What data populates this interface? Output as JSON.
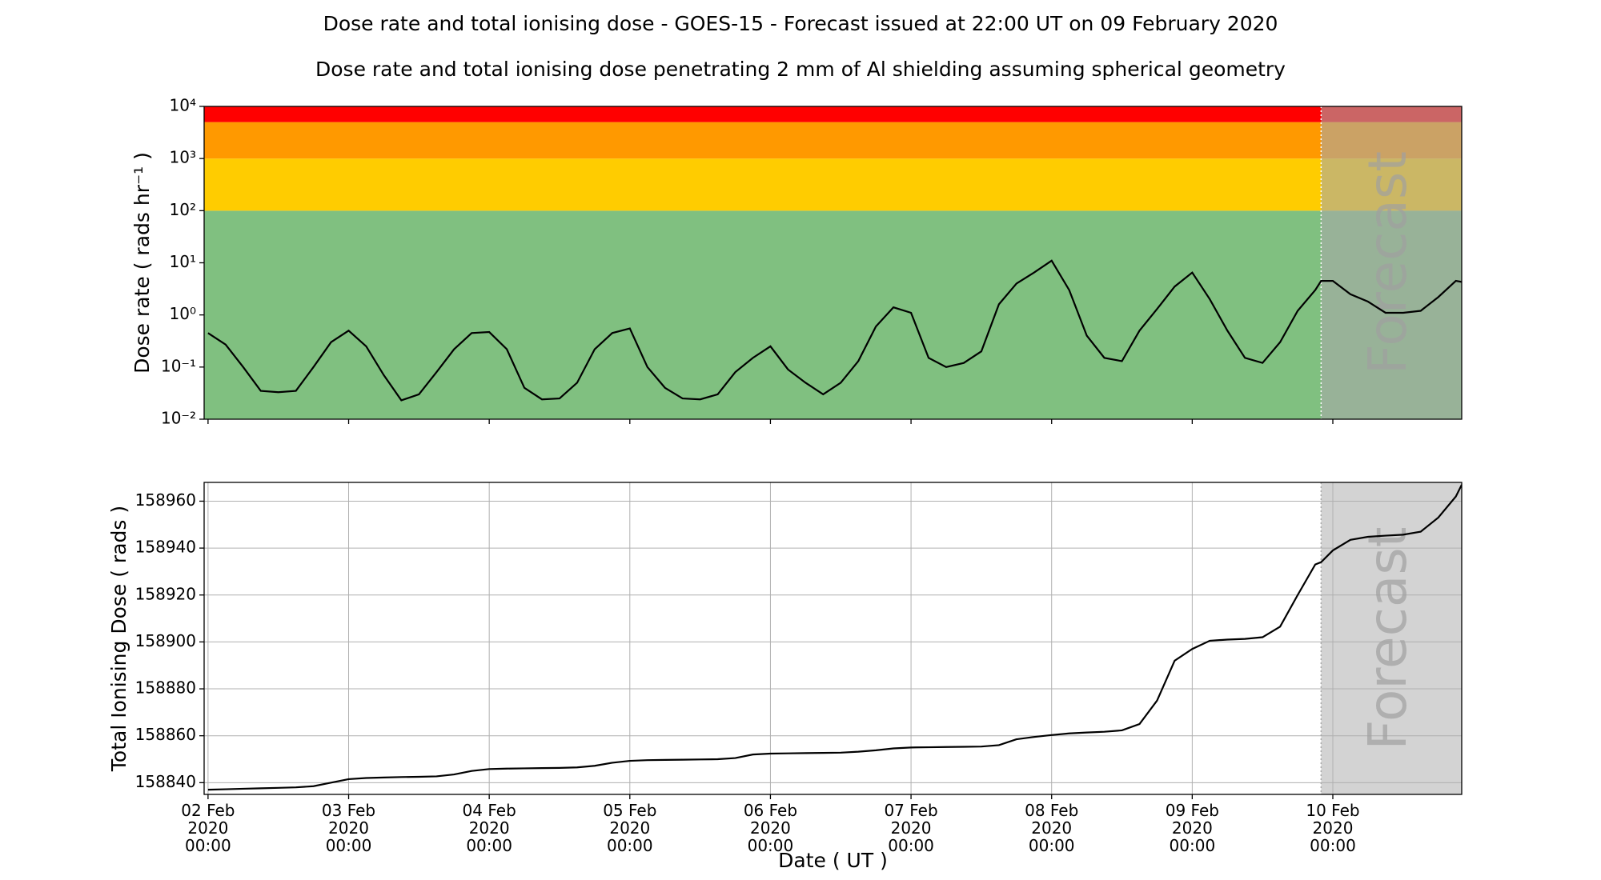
{
  "chart_data": [
    {
      "type": "line",
      "title": "Dose rate and total ionising dose - GOES-15 - Forecast issued at 22:00 UT on 09 February 2020",
      "subtitle": "Dose rate and total ionising dose penetrating 2 mm of Al shielding assuming spherical geometry",
      "y_label": "Dose rate ( rads hr⁻¹ )",
      "yscale": "log",
      "ylim": [
        0.01,
        10000
      ],
      "yticks": [
        {
          "value": 0.01,
          "label": "10⁻²"
        },
        {
          "value": 0.1,
          "label": "10⁻¹"
        },
        {
          "value": 1,
          "label": "10⁰"
        },
        {
          "value": 10,
          "label": "10¹"
        },
        {
          "value": 100,
          "label": "10²"
        },
        {
          "value": 1000,
          "label": "10³"
        },
        {
          "value": 10000,
          "label": "10⁴"
        }
      ],
      "xlim": [
        "2020-02-01 23:20",
        "2020-02-10 22:00"
      ],
      "xticks": [
        "2020-02-02 00:00",
        "2020-02-03 00:00",
        "2020-02-04 00:00",
        "2020-02-05 00:00",
        "2020-02-06 00:00",
        "2020-02-07 00:00",
        "2020-02-08 00:00",
        "2020-02-09 00:00",
        "2020-02-10 00:00"
      ],
      "grid": false,
      "bands": [
        {
          "from": 0.01,
          "to": 100,
          "color": "#80c080"
        },
        {
          "from": 100,
          "to": 1000,
          "color": "#ffcc00"
        },
        {
          "from": 1000,
          "to": 5000,
          "color": "#ff9900"
        },
        {
          "from": 5000,
          "to": 10000,
          "color": "#ff0000"
        }
      ],
      "forecast": {
        "start": "2020-02-09 22:00",
        "label": "Forecast",
        "color": "#a9a9a9",
        "line_color": "#ffffff"
      },
      "series": [
        {
          "color": "#000000",
          "x": [
            "2020-02-02 00:00",
            "2020-02-02 03:00",
            "2020-02-02 06:00",
            "2020-02-02 09:00",
            "2020-02-02 12:00",
            "2020-02-02 15:00",
            "2020-02-02 18:00",
            "2020-02-02 21:00",
            "2020-02-03 00:00",
            "2020-02-03 03:00",
            "2020-02-03 06:00",
            "2020-02-03 09:00",
            "2020-02-03 12:00",
            "2020-02-03 15:00",
            "2020-02-03 18:00",
            "2020-02-03 21:00",
            "2020-02-04 00:00",
            "2020-02-04 03:00",
            "2020-02-04 06:00",
            "2020-02-04 09:00",
            "2020-02-04 12:00",
            "2020-02-04 15:00",
            "2020-02-04 18:00",
            "2020-02-04 21:00",
            "2020-02-05 00:00",
            "2020-02-05 03:00",
            "2020-02-05 06:00",
            "2020-02-05 09:00",
            "2020-02-05 12:00",
            "2020-02-05 15:00",
            "2020-02-05 18:00",
            "2020-02-05 21:00",
            "2020-02-06 00:00",
            "2020-02-06 03:00",
            "2020-02-06 06:00",
            "2020-02-06 09:00",
            "2020-02-06 12:00",
            "2020-02-06 15:00",
            "2020-02-06 18:00",
            "2020-02-06 21:00",
            "2020-02-07 00:00",
            "2020-02-07 03:00",
            "2020-02-07 06:00",
            "2020-02-07 09:00",
            "2020-02-07 12:00",
            "2020-02-07 15:00",
            "2020-02-07 18:00",
            "2020-02-07 21:00",
            "2020-02-08 00:00",
            "2020-02-08 03:00",
            "2020-02-08 06:00",
            "2020-02-08 09:00",
            "2020-02-08 12:00",
            "2020-02-08 15:00",
            "2020-02-08 18:00",
            "2020-02-08 21:00",
            "2020-02-09 00:00",
            "2020-02-09 03:00",
            "2020-02-09 06:00",
            "2020-02-09 09:00",
            "2020-02-09 12:00",
            "2020-02-09 15:00",
            "2020-02-09 18:00",
            "2020-02-09 21:00",
            "2020-02-09 22:00",
            "2020-02-10 00:00",
            "2020-02-10 03:00",
            "2020-02-10 06:00",
            "2020-02-10 09:00",
            "2020-02-10 12:00",
            "2020-02-10 15:00",
            "2020-02-10 18:00",
            "2020-02-10 21:00",
            "2020-02-10 22:00"
          ],
          "values": [
            0.45,
            0.27,
            0.1,
            0.035,
            0.033,
            0.035,
            0.1,
            0.3,
            0.5,
            0.25,
            0.07,
            0.023,
            0.03,
            0.08,
            0.22,
            0.45,
            0.47,
            0.22,
            0.04,
            0.024,
            0.025,
            0.05,
            0.22,
            0.45,
            0.55,
            0.1,
            0.04,
            0.025,
            0.024,
            0.03,
            0.08,
            0.15,
            0.25,
            0.09,
            0.05,
            0.03,
            0.05,
            0.13,
            0.6,
            1.4,
            1.1,
            0.15,
            0.1,
            0.12,
            0.2,
            1.6,
            4,
            6.5,
            11,
            3,
            0.4,
            0.15,
            0.13,
            0.5,
            1.3,
            3.5,
            6.5,
            2,
            0.5,
            0.15,
            0.12,
            0.3,
            1.2,
            3,
            4.5,
            4.5,
            2.5,
            1.8,
            1.1,
            1.1,
            1.2,
            2.2,
            4.5,
            4.3
          ]
        }
      ]
    },
    {
      "type": "line",
      "y_label": "Total Ionising Dose ( rads )",
      "x_label": "Date ( UT )",
      "ylim": [
        158835,
        158968
      ],
      "yticks": [
        158840,
        158860,
        158880,
        158900,
        158920,
        158940,
        158960
      ],
      "xlim": [
        "2020-02-01 23:20",
        "2020-02-10 22:00"
      ],
      "xticks": [
        {
          "value": "2020-02-02 00:00",
          "label": [
            "02 Feb",
            "2020",
            "00:00"
          ]
        },
        {
          "value": "2020-02-03 00:00",
          "label": [
            "03 Feb",
            "2020",
            "00:00"
          ]
        },
        {
          "value": "2020-02-04 00:00",
          "label": [
            "04 Feb",
            "2020",
            "00:00"
          ]
        },
        {
          "value": "2020-02-05 00:00",
          "label": [
            "05 Feb",
            "2020",
            "00:00"
          ]
        },
        {
          "value": "2020-02-06 00:00",
          "label": [
            "06 Feb",
            "2020",
            "00:00"
          ]
        },
        {
          "value": "2020-02-07 00:00",
          "label": [
            "07 Feb",
            "2020",
            "00:00"
          ]
        },
        {
          "value": "2020-02-08 00:00",
          "label": [
            "08 Feb",
            "2020",
            "00:00"
          ]
        },
        {
          "value": "2020-02-09 00:00",
          "label": [
            "09 Feb",
            "2020",
            "00:00"
          ]
        },
        {
          "value": "2020-02-10 00:00",
          "label": [
            "10 Feb",
            "2020",
            "00:00"
          ]
        }
      ],
      "grid": true,
      "forecast": {
        "start": "2020-02-09 22:00",
        "label": "Forecast",
        "color": "#d3d3d3",
        "line_color": "#a9a9a9"
      },
      "series": [
        {
          "color": "#000000",
          "x": [
            "2020-02-02 00:00",
            "2020-02-02 03:00",
            "2020-02-02 06:00",
            "2020-02-02 09:00",
            "2020-02-02 12:00",
            "2020-02-02 15:00",
            "2020-02-02 18:00",
            "2020-02-02 21:00",
            "2020-02-03 00:00",
            "2020-02-03 03:00",
            "2020-02-03 06:00",
            "2020-02-03 09:00",
            "2020-02-03 12:00",
            "2020-02-03 15:00",
            "2020-02-03 18:00",
            "2020-02-03 21:00",
            "2020-02-04 00:00",
            "2020-02-04 03:00",
            "2020-02-04 06:00",
            "2020-02-04 09:00",
            "2020-02-04 12:00",
            "2020-02-04 15:00",
            "2020-02-04 18:00",
            "2020-02-04 21:00",
            "2020-02-05 00:00",
            "2020-02-05 03:00",
            "2020-02-05 06:00",
            "2020-02-05 09:00",
            "2020-02-05 12:00",
            "2020-02-05 15:00",
            "2020-02-05 18:00",
            "2020-02-05 21:00",
            "2020-02-06 00:00",
            "2020-02-06 03:00",
            "2020-02-06 06:00",
            "2020-02-06 09:00",
            "2020-02-06 12:00",
            "2020-02-06 15:00",
            "2020-02-06 18:00",
            "2020-02-06 21:00",
            "2020-02-07 00:00",
            "2020-02-07 03:00",
            "2020-02-07 06:00",
            "2020-02-07 09:00",
            "2020-02-07 12:00",
            "2020-02-07 15:00",
            "2020-02-07 18:00",
            "2020-02-07 21:00",
            "2020-02-08 00:00",
            "2020-02-08 03:00",
            "2020-02-08 06:00",
            "2020-02-08 09:00",
            "2020-02-08 12:00",
            "2020-02-08 15:00",
            "2020-02-08 18:00",
            "2020-02-08 21:00",
            "2020-02-09 00:00",
            "2020-02-09 03:00",
            "2020-02-09 06:00",
            "2020-02-09 09:00",
            "2020-02-09 12:00",
            "2020-02-09 15:00",
            "2020-02-09 18:00",
            "2020-02-09 21:00",
            "2020-02-09 22:00",
            "2020-02-10 00:00",
            "2020-02-10 03:00",
            "2020-02-10 06:00",
            "2020-02-10 09:00",
            "2020-02-10 12:00",
            "2020-02-10 15:00",
            "2020-02-10 18:00",
            "2020-02-10 21:00",
            "2020-02-10 22:00"
          ],
          "values": [
            158837,
            158837.2,
            158837.4,
            158837.6,
            158837.8,
            158838,
            158838.5,
            158840,
            158841.5,
            158842,
            158842.2,
            158842.4,
            158842.5,
            158842.7,
            158843.5,
            158845,
            158845.8,
            158846,
            158846.1,
            158846.2,
            158846.3,
            158846.5,
            158847.2,
            158848.5,
            158849.3,
            158849.6,
            158849.7,
            158849.8,
            158849.9,
            158850,
            158850.5,
            158852,
            158852.4,
            158852.5,
            158852.6,
            158852.7,
            158852.8,
            158853.2,
            158853.8,
            158854.6,
            158855,
            158855.1,
            158855.2,
            158855.3,
            158855.4,
            158856,
            158858.5,
            158859.5,
            158860.3,
            158861,
            158861.4,
            158861.7,
            158862.3,
            158865,
            158875,
            158892,
            158897,
            158900.5,
            158901,
            158901.3,
            158902,
            158906.5,
            158920,
            158933,
            158934,
            158939,
            158943.5,
            158944.8,
            158945.3,
            158945.7,
            158947,
            158953,
            158962,
            158967
          ]
        }
      ]
    }
  ]
}
